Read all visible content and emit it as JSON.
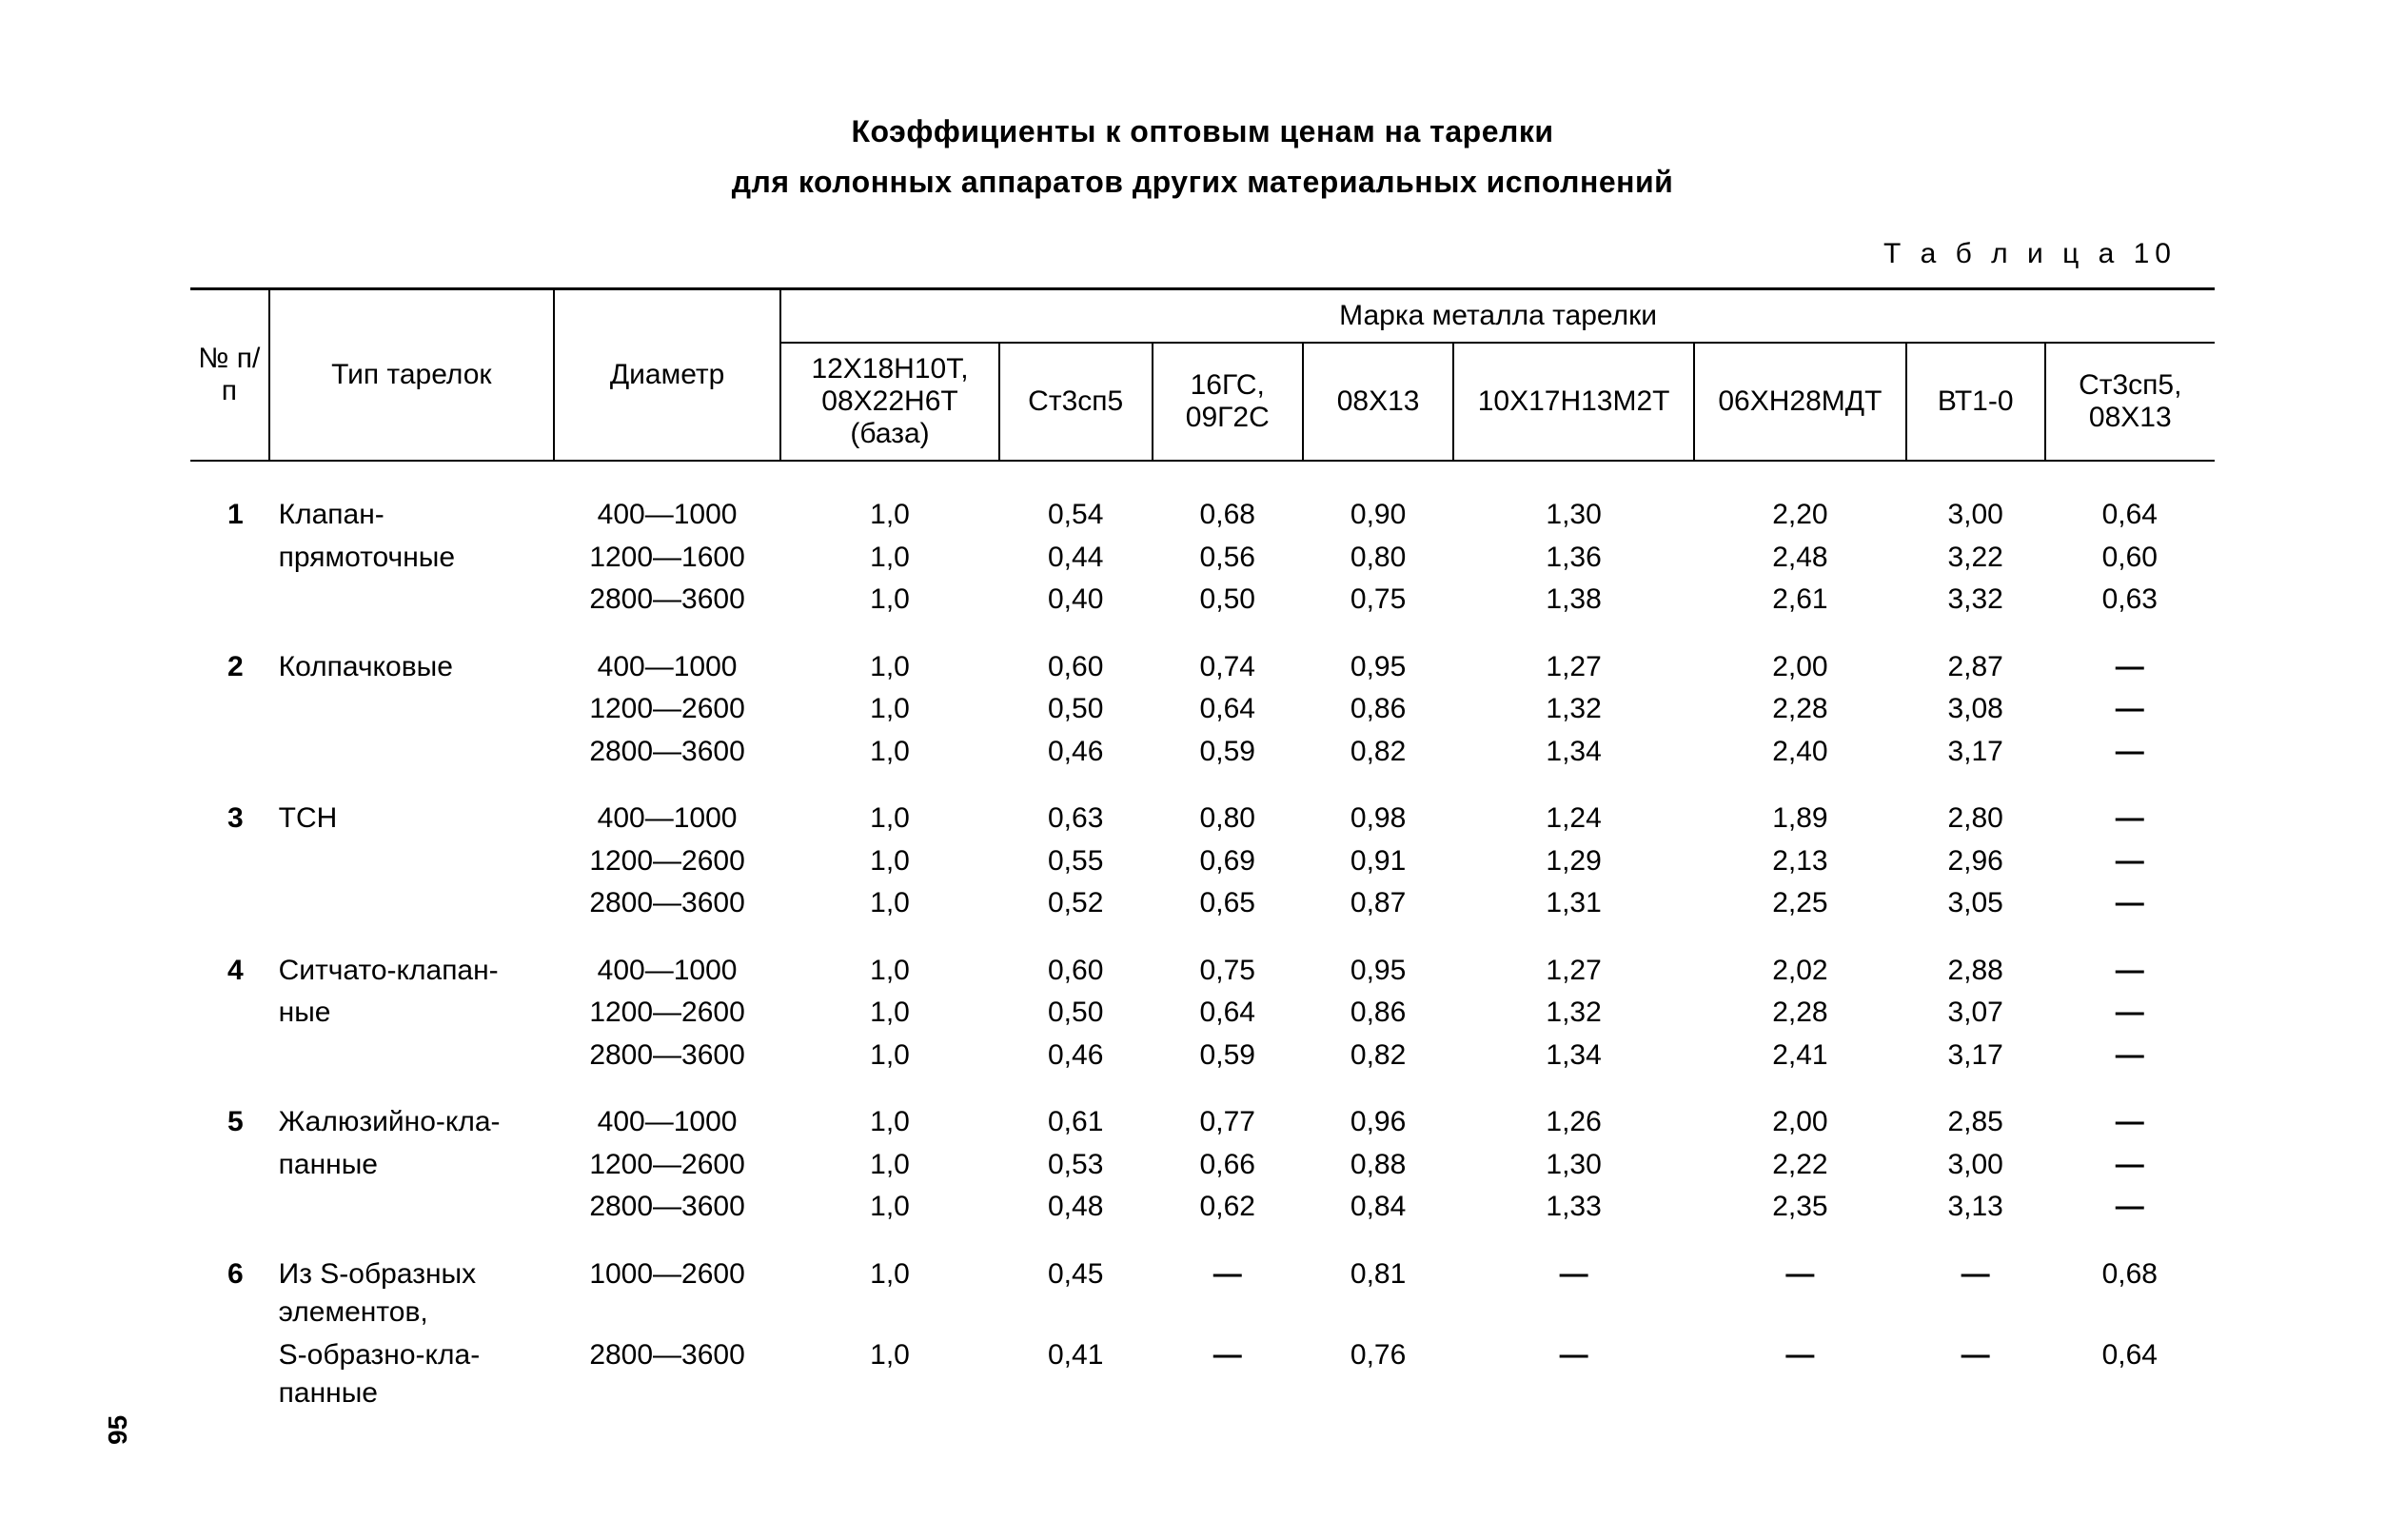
{
  "title_line1": "Коэффициенты к оптовым ценам на тарелки",
  "title_line2": "для колонных аппаратов других материальных исполнений",
  "table_label": "Т а б л и ц а  10",
  "page_number": "95",
  "dash": "—",
  "header": {
    "num": "№ п/п",
    "type": "Тип тарелок",
    "diameter": "Диаметр",
    "metal_group": "Марка металла тарелки",
    "cols": {
      "base": "12Х18Н10Т, 08Х22Н6Т (база)",
      "st3sp5": "Ст3сп5",
      "gs": "16ГС, 09Г2С",
      "x08": "08Х13",
      "x10": "10Х17Н13М2Т",
      "x06": "06ХН28МДТ",
      "vt1": "ВТ1-0",
      "last": "Ст3сп5, 08Х13"
    }
  },
  "groups": [
    {
      "n": "1",
      "type_lines": [
        "Клапан-",
        "прямоточные"
      ],
      "rows": [
        {
          "dia": "400—1000",
          "v": [
            "1,0",
            "0,54",
            "0,68",
            "0,90",
            "1,30",
            "2,20",
            "3,00",
            "0,64"
          ]
        },
        {
          "dia": "1200—1600",
          "v": [
            "1,0",
            "0,44",
            "0,56",
            "0,80",
            "1,36",
            "2,48",
            "3,22",
            "0,60"
          ]
        },
        {
          "dia": "2800—3600",
          "v": [
            "1,0",
            "0,40",
            "0,50",
            "0,75",
            "1,38",
            "2,61",
            "3,32",
            "0,63"
          ]
        }
      ]
    },
    {
      "n": "2",
      "type_lines": [
        "Колпачковые"
      ],
      "rows": [
        {
          "dia": "400—1000",
          "v": [
            "1,0",
            "0,60",
            "0,74",
            "0,95",
            "1,27",
            "2,00",
            "2,87",
            "—"
          ]
        },
        {
          "dia": "1200—2600",
          "v": [
            "1,0",
            "0,50",
            "0,64",
            "0,86",
            "1,32",
            "2,28",
            "3,08",
            "—"
          ]
        },
        {
          "dia": "2800—3600",
          "v": [
            "1,0",
            "0,46",
            "0,59",
            "0,82",
            "1,34",
            "2,40",
            "3,17",
            "—"
          ]
        }
      ]
    },
    {
      "n": "3",
      "type_lines": [
        "ТСН"
      ],
      "rows": [
        {
          "dia": "400—1000",
          "v": [
            "1,0",
            "0,63",
            "0,80",
            "0,98",
            "1,24",
            "1,89",
            "2,80",
            "—"
          ]
        },
        {
          "dia": "1200—2600",
          "v": [
            "1,0",
            "0,55",
            "0,69",
            "0,91",
            "1,29",
            "2,13",
            "2,96",
            "—"
          ]
        },
        {
          "dia": "2800—3600",
          "v": [
            "1,0",
            "0,52",
            "0,65",
            "0,87",
            "1,31",
            "2,25",
            "3,05",
            "—"
          ]
        }
      ]
    },
    {
      "n": "4",
      "type_lines": [
        "Ситчато-клапан-",
        "ные"
      ],
      "rows": [
        {
          "dia": "400—1000",
          "v": [
            "1,0",
            "0,60",
            "0,75",
            "0,95",
            "1,27",
            "2,02",
            "2,88",
            "—"
          ]
        },
        {
          "dia": "1200—2600",
          "v": [
            "1,0",
            "0,50",
            "0,64",
            "0,86",
            "1,32",
            "2,28",
            "3,07",
            "—"
          ]
        },
        {
          "dia": "2800—3600",
          "v": [
            "1,0",
            "0,46",
            "0,59",
            "0,82",
            "1,34",
            "2,41",
            "3,17",
            "—"
          ]
        }
      ]
    },
    {
      "n": "5",
      "type_lines": [
        "Жалюзийно-кла-",
        "панные"
      ],
      "rows": [
        {
          "dia": "400—1000",
          "v": [
            "1,0",
            "0,61",
            "0,77",
            "0,96",
            "1,26",
            "2,00",
            "2,85",
            "—"
          ]
        },
        {
          "dia": "1200—2600",
          "v": [
            "1,0",
            "0,53",
            "0,66",
            "0,88",
            "1,30",
            "2,22",
            "3,00",
            "—"
          ]
        },
        {
          "dia": "2800—3600",
          "v": [
            "1,0",
            "0,48",
            "0,62",
            "0,84",
            "1,33",
            "2,35",
            "3,13",
            "—"
          ]
        }
      ]
    },
    {
      "n": "6",
      "type_lines": [
        "Из S-образных",
        "элементов,",
        "S-образно-кла-",
        "панные"
      ],
      "rows": [
        {
          "dia": "1000—2600",
          "v": [
            "1,0",
            "0,45",
            "—",
            "0,81",
            "—",
            "—",
            "—",
            "0,68"
          ]
        },
        {
          "dia": "2800—3600",
          "v": [
            "1,0",
            "0,41",
            "—",
            "0,76",
            "—",
            "—",
            "—",
            "0,64"
          ]
        }
      ],
      "type_line_map": [
        0,
        2
      ]
    }
  ]
}
